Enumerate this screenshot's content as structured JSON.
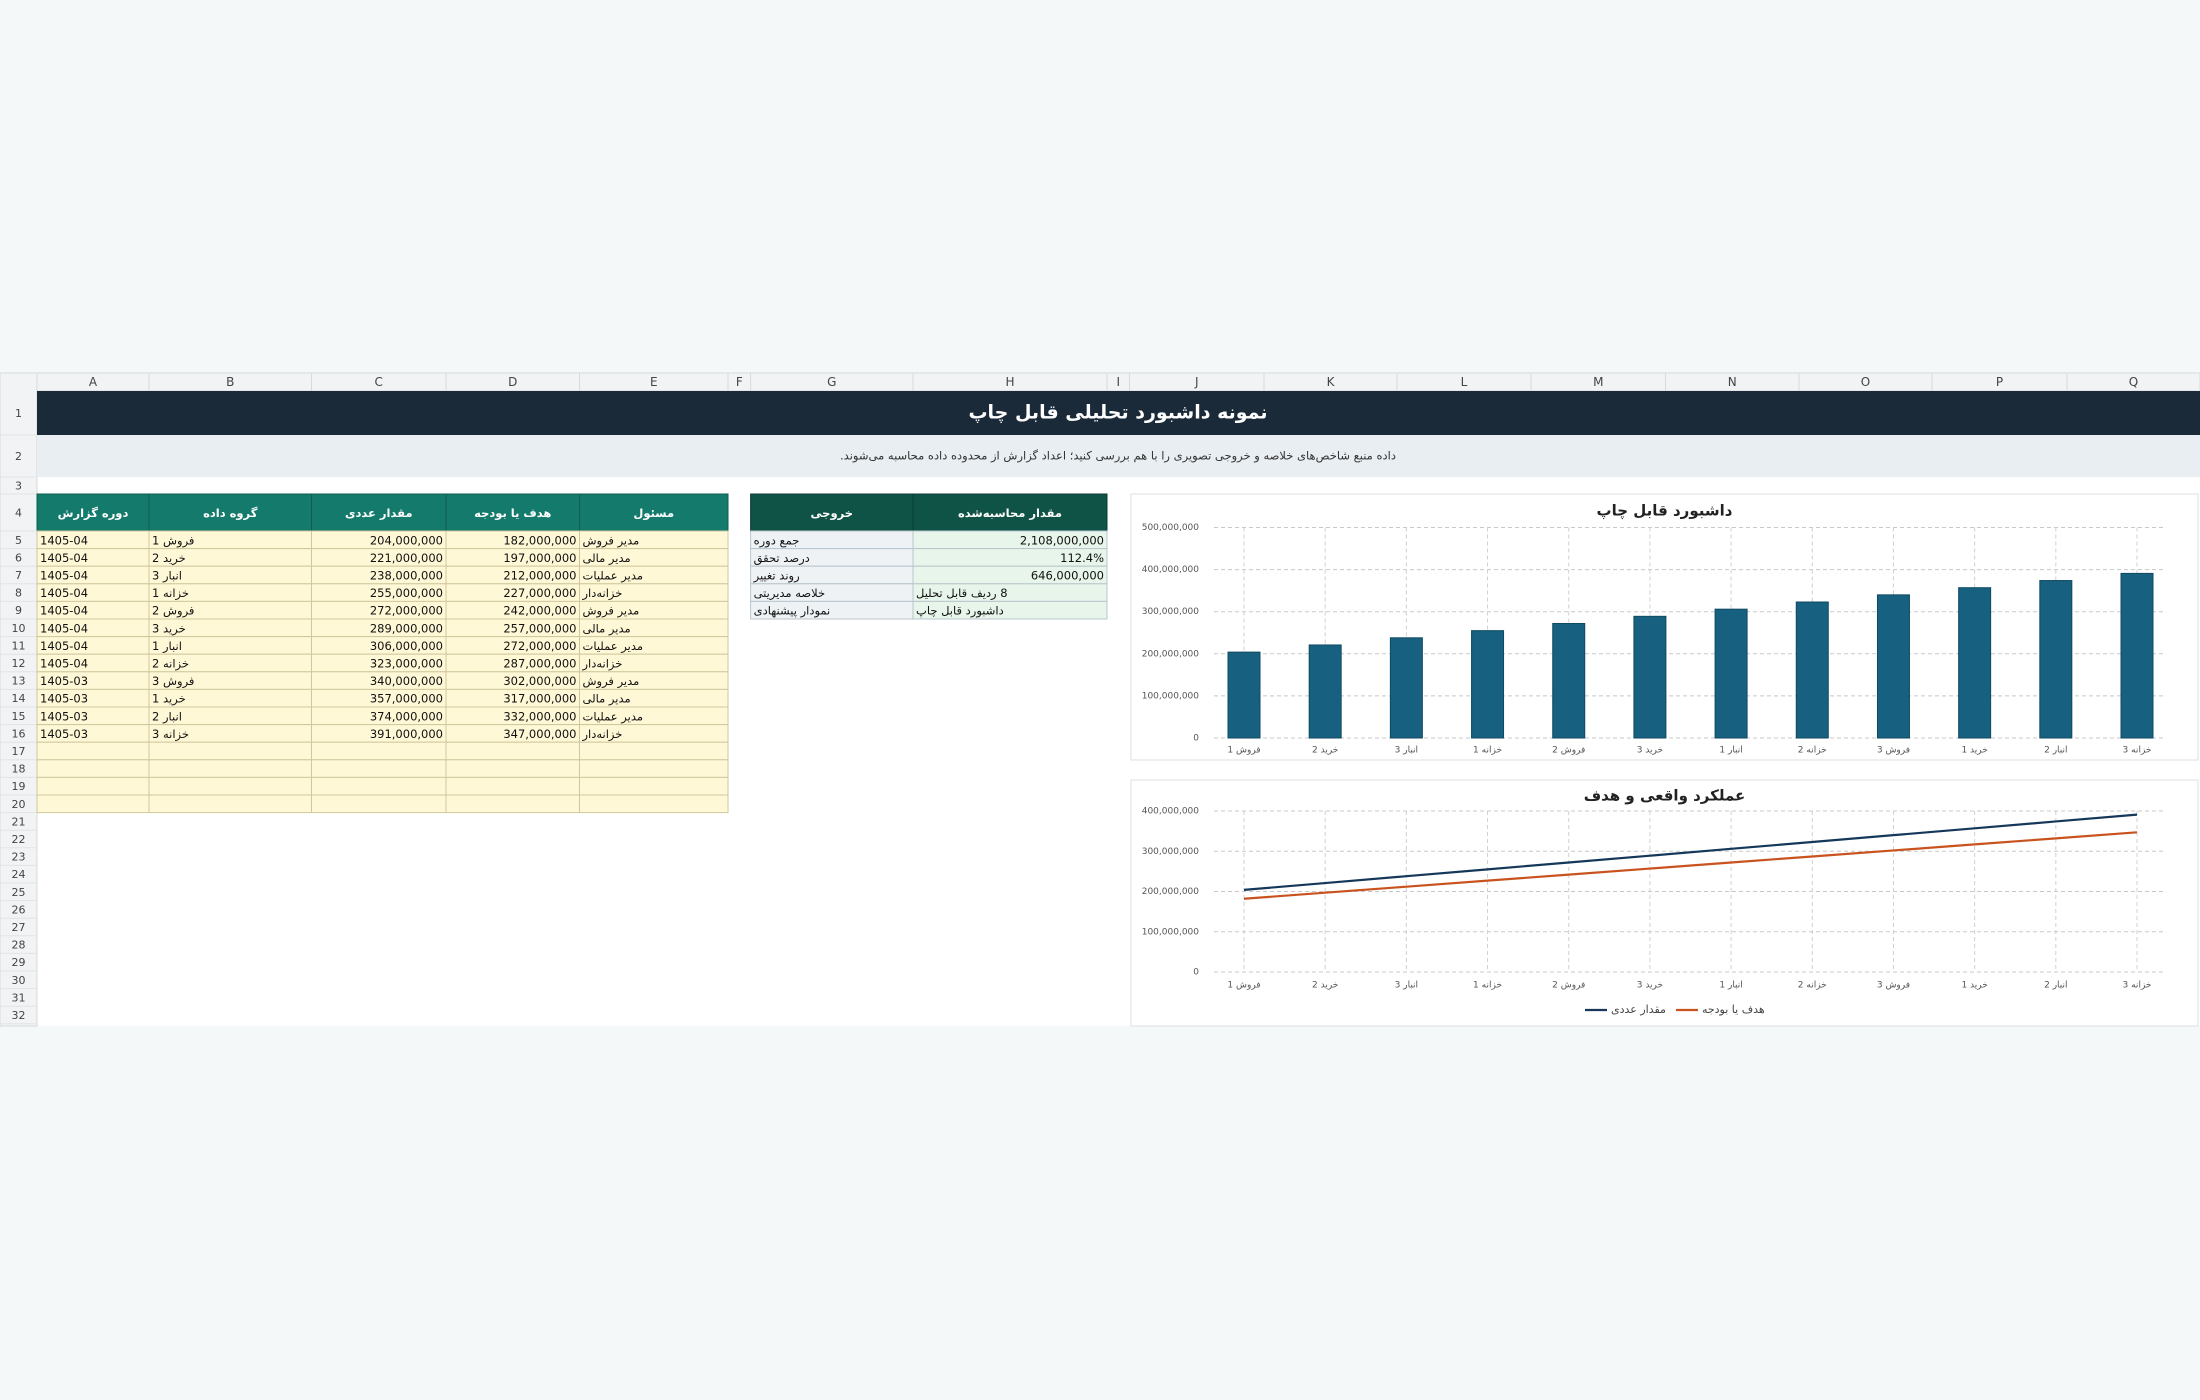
{
  "sheet": {
    "columns": [
      "A",
      "B",
      "C",
      "D",
      "E",
      "F",
      "G",
      "H",
      "I",
      "J",
      "K",
      "L",
      "M",
      "N",
      "O",
      "P",
      "Q"
    ],
    "rows": [
      1,
      2,
      3,
      4,
      5,
      6,
      7,
      8,
      9,
      10,
      11,
      12,
      13,
      14,
      15,
      16,
      17,
      18,
      19,
      20,
      21,
      22,
      23,
      24,
      25,
      26,
      27,
      28,
      29,
      30,
      31,
      32
    ]
  },
  "title": "نمونه داشبورد تحلیلی قابل چاپ",
  "subtitle": "داده منبع شاخص‌های خلاصه و خروجی تصویری را با هم بررسی کنید؛ اعداد گزارش از محدوده داده محاسبه می‌شوند.",
  "table": {
    "header": [
      "دوره گزارش",
      "گروه داده",
      "مقدار عددی",
      "هدف یا بودجه",
      "مسئول"
    ],
    "rows": [
      [
        "1405-04",
        "فروش 1",
        "204,000,000",
        "182,000,000",
        "مدیر فروش"
      ],
      [
        "1405-04",
        "خرید 2",
        "221,000,000",
        "197,000,000",
        "مدیر مالی"
      ],
      [
        "1405-04",
        "انبار 3",
        "238,000,000",
        "212,000,000",
        "مدیر عملیات"
      ],
      [
        "1405-04",
        "خزانه 1",
        "255,000,000",
        "227,000,000",
        "خزانه‌دار"
      ],
      [
        "1405-04",
        "فروش 2",
        "272,000,000",
        "242,000,000",
        "مدیر فروش"
      ],
      [
        "1405-04",
        "خرید 3",
        "289,000,000",
        "257,000,000",
        "مدیر مالی"
      ],
      [
        "1405-04",
        "انبار 1",
        "306,000,000",
        "272,000,000",
        "مدیر عملیات"
      ],
      [
        "1405-04",
        "خزانه 2",
        "323,000,000",
        "287,000,000",
        "خزانه‌دار"
      ],
      [
        "1405-03",
        "فروش 3",
        "340,000,000",
        "302,000,000",
        "مدیر فروش"
      ],
      [
        "1405-03",
        "خرید 1",
        "357,000,000",
        "317,000,000",
        "مدیر مالی"
      ],
      [
        "1405-03",
        "انبار 2",
        "374,000,000",
        "332,000,000",
        "مدیر عملیات"
      ],
      [
        "1405-03",
        "خزانه 3",
        "391,000,000",
        "347,000,000",
        "خزانه‌دار"
      ]
    ]
  },
  "summary": {
    "header": [
      "خروجی",
      "مقدار محاسبه‌شده"
    ],
    "rows": [
      [
        "جمع دوره",
        "2,108,000,000"
      ],
      [
        "درصد تحقق",
        "112.4%"
      ],
      [
        "روند تغییر",
        "646,000,000"
      ],
      [
        "خلاصه مدیریتی",
        "8 ردیف قابل تحلیل"
      ],
      [
        "نمودار پیشنهادی",
        "داشبورد قابل چاپ"
      ]
    ]
  },
  "chart_data": [
    {
      "type": "bar",
      "title": "داشبورد قابل چاپ",
      "categories": [
        "فروش 1",
        "خرید 2",
        "انبار 3",
        "خزانه 1",
        "فروش 2",
        "خرید 3",
        "انبار 1",
        "خزانه 2",
        "فروش 3",
        "خرید 1",
        "انبار 2",
        "خزانه 3"
      ],
      "values": [
        204000000,
        221000000,
        238000000,
        255000000,
        272000000,
        289000000,
        306000000,
        323000000,
        340000000,
        357000000,
        374000000,
        391000000
      ],
      "color": "#17607f",
      "ylim": [
        0,
        500000000
      ],
      "yticks": [
        0,
        {
          "value": 100000000,
          "label": "100,000,000"
        },
        {
          "value": 200000000,
          "label": "200,000,000"
        },
        {
          "value": 300000000,
          "label": "300,000,000"
        },
        {
          "value": 400000000,
          "label": "400,000,000"
        },
        {
          "value": 500000000,
          "label": "500,000,000"
        }
      ],
      "grid": true
    },
    {
      "type": "line",
      "title": "عملکرد واقعی و هدف",
      "categories": [
        "فروش 1",
        "خرید 2",
        "انبار 3",
        "خزانه 1",
        "فروش 2",
        "خرید 3",
        "انبار 1",
        "خزانه 2",
        "فروش 3",
        "خرید 1",
        "انبار 2",
        "خزانه 3"
      ],
      "series": [
        {
          "name": "مقدار عددی",
          "color": "#15385a",
          "values": [
            204000000,
            221000000,
            238000000,
            255000000,
            272000000,
            289000000,
            306000000,
            323000000,
            340000000,
            357000000,
            374000000,
            391000000
          ]
        },
        {
          "name": "هدف یا بودجه",
          "color": "#c9531f",
          "values": [
            182000000,
            197000000,
            212000000,
            227000000,
            242000000,
            257000000,
            272000000,
            287000000,
            302000000,
            317000000,
            332000000,
            347000000
          ]
        }
      ],
      "ylim": [
        0,
        400000000
      ],
      "yticks": [
        0,
        {
          "value": 100000000,
          "label": "100,000,000"
        },
        {
          "value": 200000000,
          "label": "200,000,000"
        },
        {
          "value": 300000000,
          "label": "300,000,000"
        },
        {
          "value": 400000000,
          "label": "400,000,000"
        }
      ],
      "grid": true,
      "legend": "bottom"
    }
  ]
}
